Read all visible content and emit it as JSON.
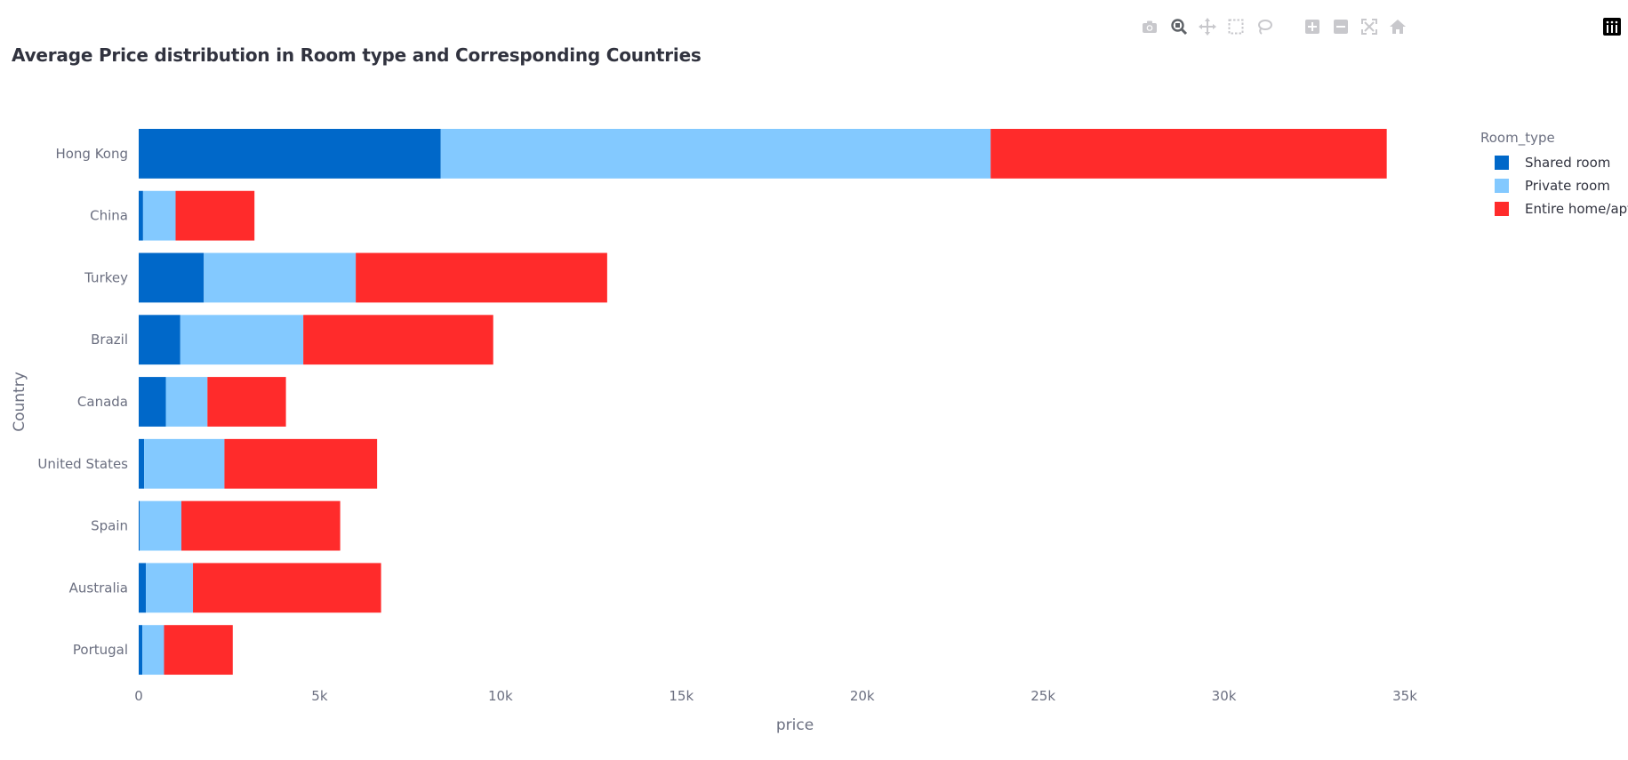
{
  "toolbar": {
    "icons": [
      "camera-icon",
      "zoom-icon",
      "pan-icon",
      "box-select-icon",
      "lasso-icon",
      "zoom-in-icon",
      "zoom-out-icon",
      "autoscale-icon",
      "reset-icon",
      "plotly-logo-icon"
    ]
  },
  "chart_data": {
    "type": "bar",
    "orientation": "horizontal",
    "barmode": "stack",
    "title": "Average Price distribution in Room type and Corresponding Countries",
    "xlabel": "price",
    "ylabel": "Country",
    "xlim": [
      0,
      35000
    ],
    "xticks": [
      0,
      5000,
      10000,
      15000,
      20000,
      25000,
      30000,
      35000
    ],
    "xtick_labels": [
      "0",
      "5k",
      "10k",
      "15k",
      "20k",
      "25k",
      "30k",
      "35k"
    ],
    "grid": false,
    "categories": [
      "Hong Kong",
      "China",
      "Turkey",
      "Brazil",
      "Canada",
      "United States",
      "Spain",
      "Australia",
      "Portugal"
    ],
    "legend": {
      "title": "Room_type",
      "placement": "top-right"
    },
    "series": [
      {
        "name": "Shared room",
        "color": "#0068c9",
        "values": [
          8350,
          120,
          1800,
          1150,
          750,
          150,
          30,
          200,
          100
        ]
      },
      {
        "name": "Private room",
        "color": "#83c9ff",
        "values": [
          15200,
          900,
          4200,
          3400,
          1150,
          2220,
          1150,
          1300,
          600
        ]
      },
      {
        "name": "Entire home/apt",
        "color": "#ff2b2b",
        "values": [
          10950,
          2180,
          6950,
          5250,
          2170,
          4220,
          4390,
          5200,
          1900
        ]
      }
    ]
  }
}
